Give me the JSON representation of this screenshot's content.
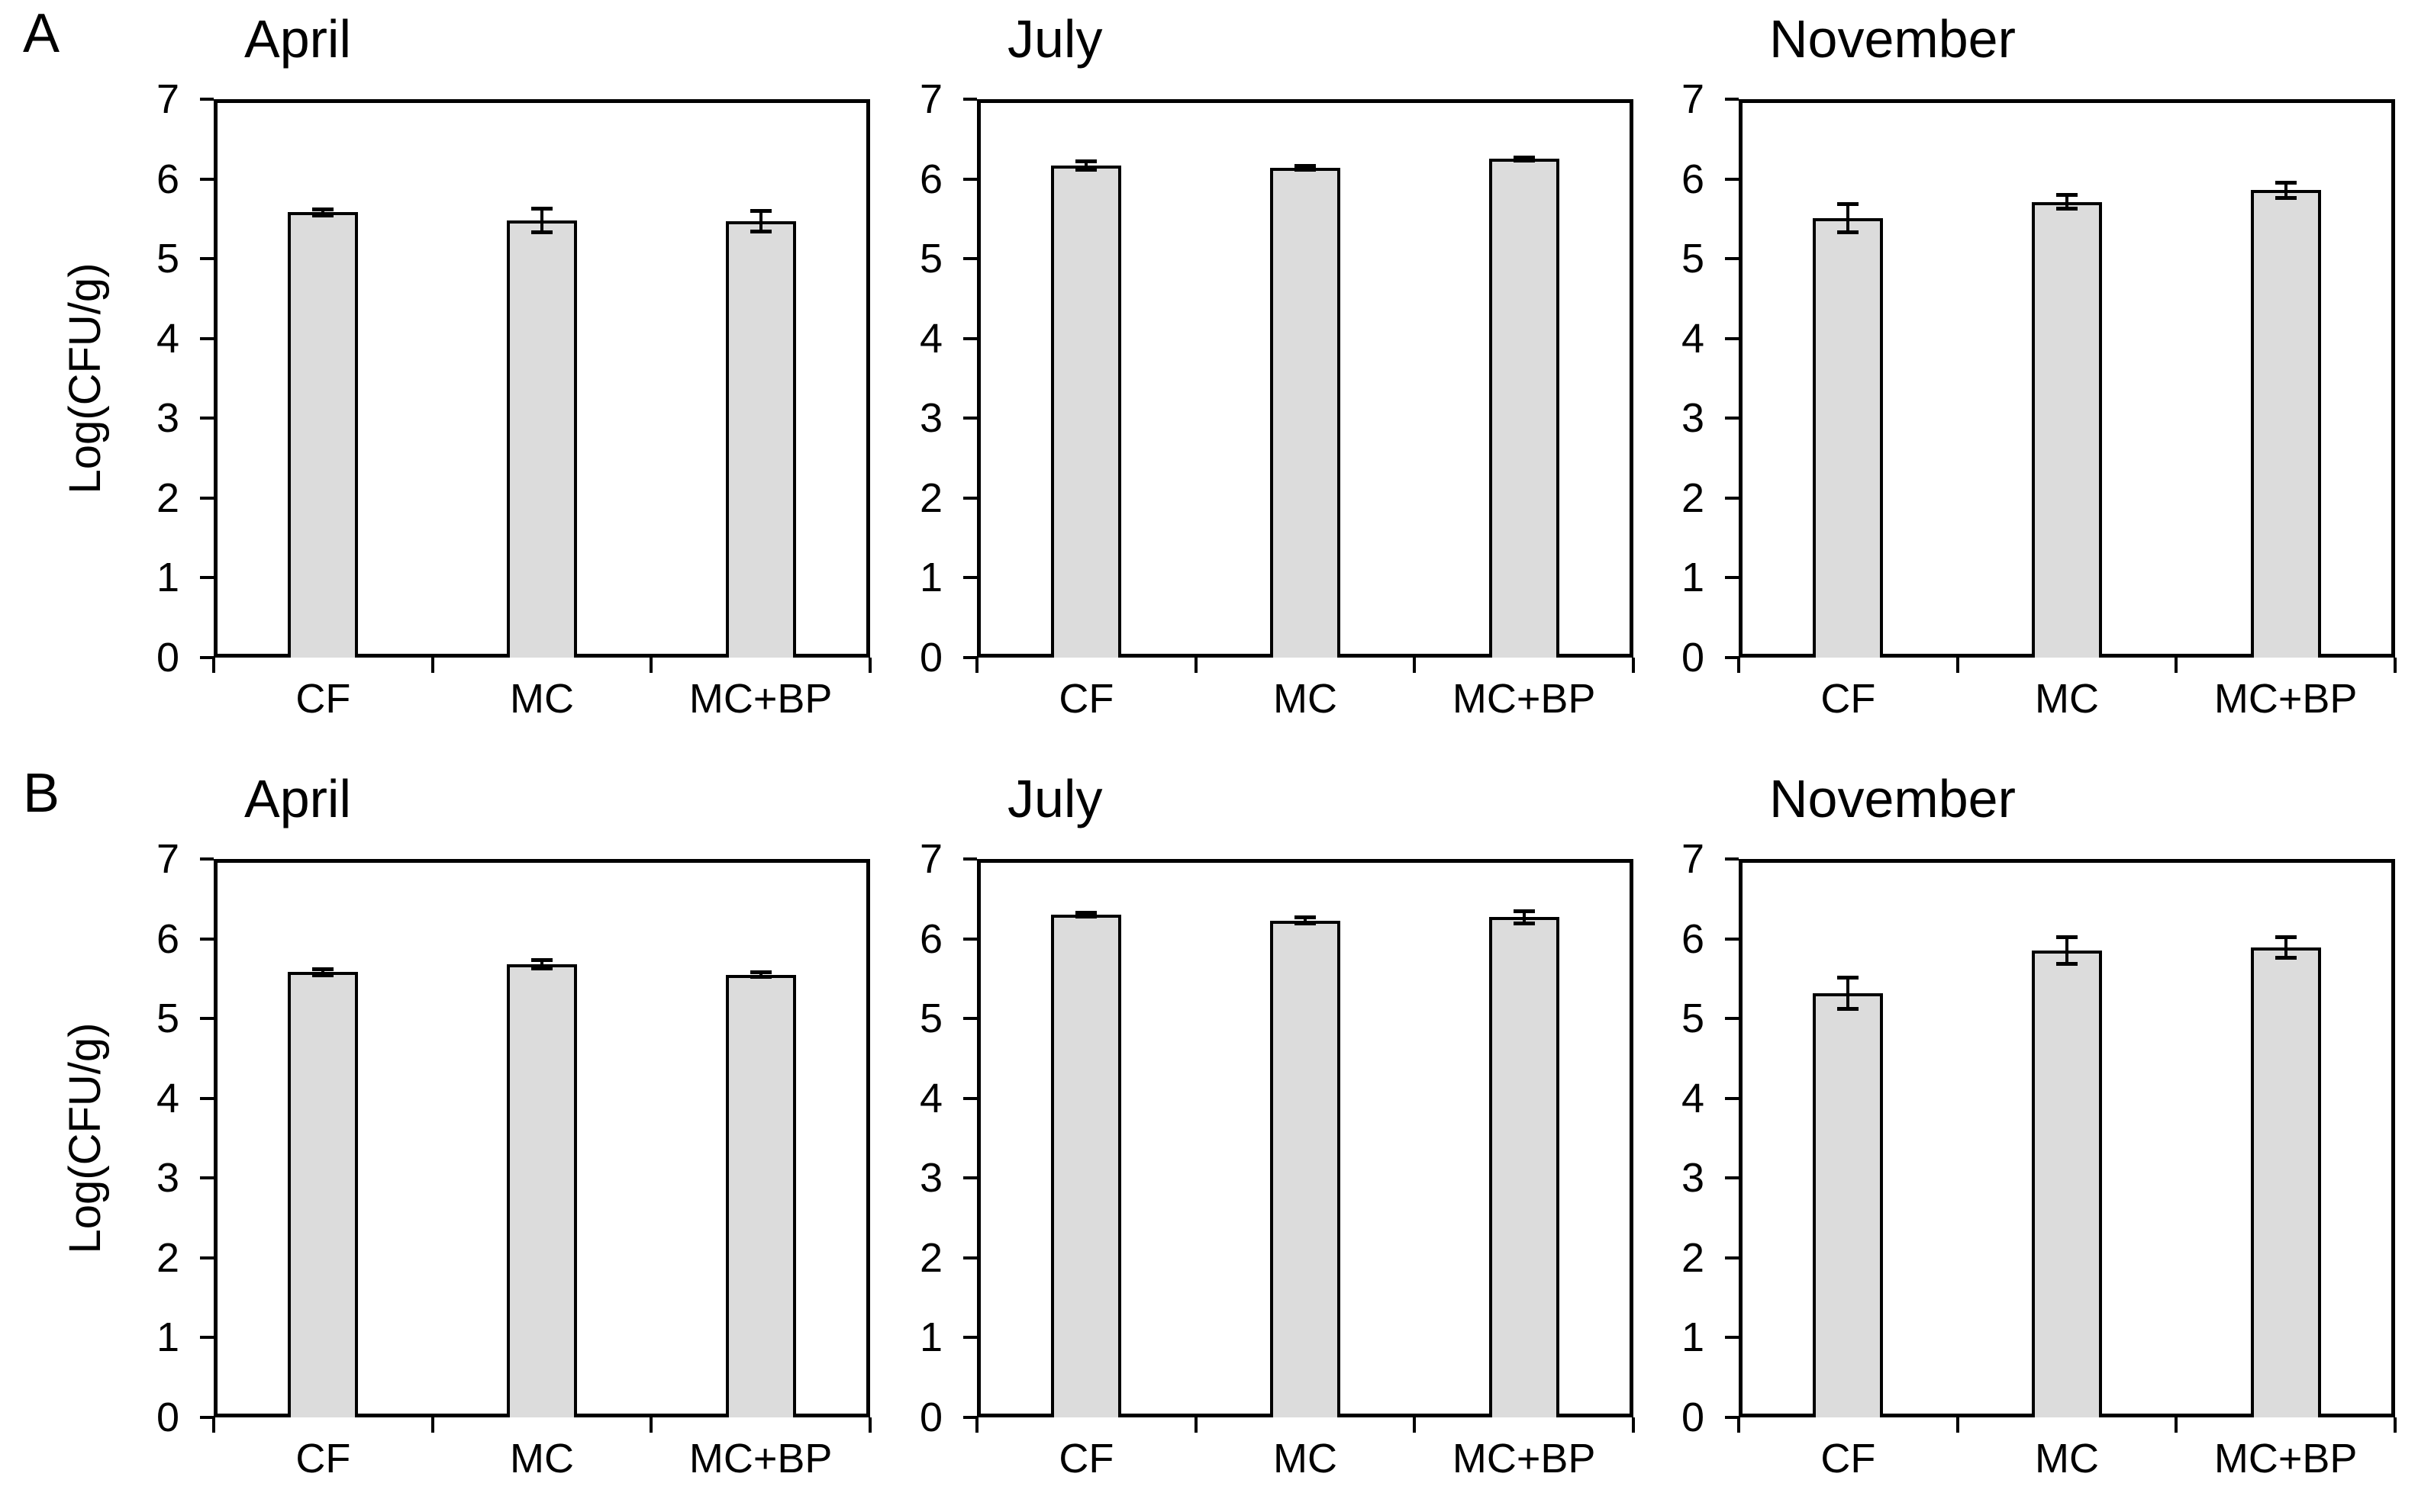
{
  "page": {
    "background": "#ffffff"
  },
  "figure": {
    "panel_labels": [
      "A",
      "B"
    ],
    "ylabel": "Log(CFU/g)",
    "colors": {
      "bar_fill": "#dcdcdc",
      "bar_border": "#000000",
      "axis": "#000000",
      "text": "#000000",
      "background": "#ffffff"
    }
  },
  "chart_data": [
    {
      "type": "bar",
      "panel": "A",
      "title": "April",
      "categories": [
        "CF",
        "MC",
        "MC+BP"
      ],
      "values": [
        5.58,
        5.48,
        5.47
      ],
      "errors": [
        0.04,
        0.15,
        0.13
      ],
      "ylabel": "Log(CFU/g)",
      "ylim": [
        0,
        7
      ],
      "yticks": [
        0,
        1,
        2,
        3,
        4,
        5,
        6,
        7
      ],
      "grid": false,
      "legend": null
    },
    {
      "type": "bar",
      "panel": "A",
      "title": "July",
      "categories": [
        "CF",
        "MC",
        "MC+BP"
      ],
      "values": [
        6.17,
        6.14,
        6.25
      ],
      "errors": [
        0.06,
        0.03,
        0.02
      ],
      "ylabel": "Log(CFU/g)",
      "ylim": [
        0,
        7
      ],
      "yticks": [
        0,
        1,
        2,
        3,
        4,
        5,
        6,
        7
      ],
      "grid": false,
      "legend": null
    },
    {
      "type": "bar",
      "panel": "A",
      "title": "November",
      "categories": [
        "CF",
        "MC",
        "MC+BP"
      ],
      "values": [
        5.51,
        5.71,
        5.86
      ],
      "errors": [
        0.18,
        0.09,
        0.1
      ],
      "ylabel": "Log(CFU/g)",
      "ylim": [
        0,
        7
      ],
      "yticks": [
        0,
        1,
        2,
        3,
        4,
        5,
        6,
        7
      ],
      "grid": false,
      "legend": null
    },
    {
      "type": "bar",
      "panel": "B",
      "title": "April",
      "categories": [
        "CF",
        "MC",
        "MC+BP"
      ],
      "values": [
        5.58,
        5.68,
        5.55
      ],
      "errors": [
        0.04,
        0.06,
        0.03
      ],
      "ylabel": "Log(CFU/g)",
      "ylim": [
        0,
        7
      ],
      "yticks": [
        0,
        1,
        2,
        3,
        4,
        5,
        6,
        7
      ],
      "grid": false,
      "legend": null
    },
    {
      "type": "bar",
      "panel": "B",
      "title": "July",
      "categories": [
        "CF",
        "MC",
        "MC+BP"
      ],
      "values": [
        6.3,
        6.23,
        6.27
      ],
      "errors": [
        0.03,
        0.04,
        0.08
      ],
      "ylabel": "Log(CFU/g)",
      "ylim": [
        0,
        7
      ],
      "yticks": [
        0,
        1,
        2,
        3,
        4,
        5,
        6,
        7
      ],
      "grid": false,
      "legend": null
    },
    {
      "type": "bar",
      "panel": "B",
      "title": "November",
      "categories": [
        "CF",
        "MC",
        "MC+BP"
      ],
      "values": [
        5.32,
        5.85,
        5.89
      ],
      "errors": [
        0.2,
        0.17,
        0.13
      ],
      "ylabel": "Log(CFU/g)",
      "ylim": [
        0,
        7
      ],
      "yticks": [
        0,
        1,
        2,
        3,
        4,
        5,
        6,
        7
      ],
      "grid": false,
      "legend": null
    }
  ]
}
